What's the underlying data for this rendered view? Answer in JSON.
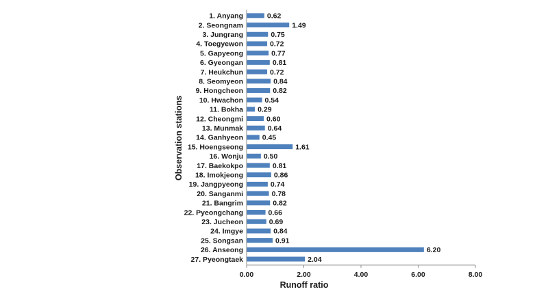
{
  "chart_data": {
    "type": "bar",
    "orientation": "horizontal",
    "xlabel": "Runoff ratio",
    "ylabel": "Observation stations",
    "xlim": [
      0,
      8
    ],
    "xticks": [
      "0.00",
      "2.00",
      "4.00",
      "6.00",
      "8.00"
    ],
    "grid": false,
    "bar_color": "#4f81bd",
    "categories": [
      "1. Anyang",
      "2. Seongnam",
      "3. Jungrang",
      "4. Toegyewon",
      "5. Gapyeong",
      "6. Gyeongan",
      "7. Heukchun",
      "8. Seomyeon",
      "9. Hongcheon",
      "10. Hwachon",
      "11. Bokha",
      "12. Cheongmi",
      "13. Munmak",
      "14. Ganhyeon",
      "15. Hoengseong",
      "16. Wonju",
      "17. Baekokpo",
      "18. Imokjeong",
      "19. Jangpyeong",
      "20. Sanganmi",
      "21. Bangrim",
      "22. Pyeongchang",
      "23. Jucheon",
      "24. Imgye",
      "25. Songsan",
      "26. Anseong",
      "27. Pyeongtaek"
    ],
    "values": [
      0.62,
      1.49,
      0.75,
      0.72,
      0.77,
      0.81,
      0.72,
      0.84,
      0.82,
      0.54,
      0.29,
      0.6,
      0.64,
      0.45,
      1.61,
      0.5,
      0.81,
      0.86,
      0.74,
      0.78,
      0.82,
      0.66,
      0.69,
      0.84,
      0.91,
      6.2,
      2.04
    ],
    "value_labels": [
      "0.62",
      "1.49",
      "0.75",
      "0.72",
      "0.77",
      "0.81",
      "0.72",
      "0.84",
      "0.82",
      "0.54",
      "0.29",
      "0.60",
      "0.64",
      "0.45",
      "1.61",
      "0.50",
      "0.81",
      "0.86",
      "0.74",
      "0.78",
      "0.82",
      "0.66",
      "0.69",
      "0.84",
      "0.91",
      "6.20",
      "2.04"
    ]
  }
}
